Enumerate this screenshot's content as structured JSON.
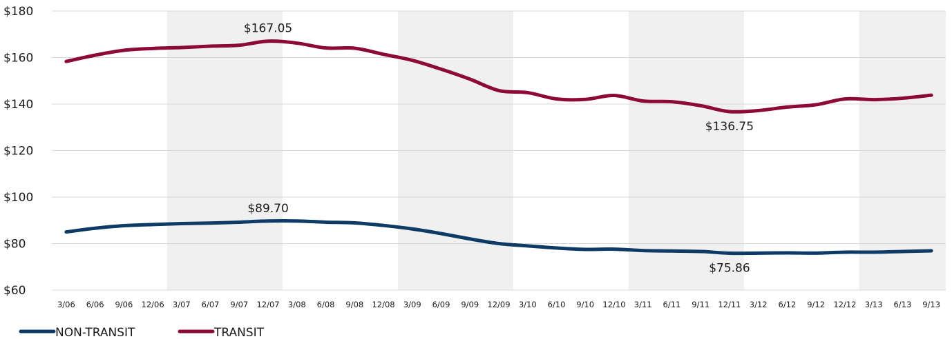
{
  "chart_data": {
    "type": "line",
    "title": "",
    "xlabel": "",
    "ylabel": "",
    "ylim": [
      60,
      180
    ],
    "yticks": [
      60,
      80,
      100,
      120,
      140,
      160,
      180
    ],
    "ytick_labels": [
      "$60",
      "$80",
      "$100",
      "$120",
      "$140",
      "$160",
      "$180"
    ],
    "grid": true,
    "legend": "bottom-left",
    "shaded_bands": [
      [
        "3/07",
        "12/07"
      ],
      [
        "3/09",
        "12/09"
      ],
      [
        "3/11",
        "12/11"
      ],
      [
        "3/13",
        "9/13"
      ]
    ],
    "categories": [
      "3/06",
      "6/06",
      "9/06",
      "12/06",
      "3/07",
      "6/07",
      "9/07",
      "12/07",
      "3/08",
      "6/08",
      "9/08",
      "12/08",
      "3/09",
      "6/09",
      "9/09",
      "12/09",
      "3/10",
      "6/10",
      "9/10",
      "12/10",
      "3/11",
      "6/11",
      "9/11",
      "12/11",
      "3/12",
      "6/12",
      "9/12",
      "12/12",
      "3/13",
      "6/13",
      "9/13"
    ],
    "series": [
      {
        "name": "NON-TRANSIT",
        "color": "#0e3a66",
        "values": [
          85.0,
          86.6,
          87.7,
          88.2,
          88.6,
          88.8,
          89.2,
          89.7,
          89.7,
          89.2,
          88.9,
          87.8,
          86.3,
          84.3,
          82.0,
          80.0,
          79.0,
          78.1,
          77.5,
          77.6,
          77.0,
          76.8,
          76.6,
          75.86,
          75.9,
          76.0,
          75.9,
          76.3,
          76.3,
          76.6,
          76.9
        ]
      },
      {
        "name": "TRANSIT",
        "color": "#8c0a35",
        "values": [
          158.3,
          161.0,
          163.1,
          163.9,
          164.3,
          164.9,
          165.3,
          167.05,
          166.2,
          164.1,
          164.0,
          161.4,
          158.8,
          155.0,
          150.7,
          145.8,
          144.9,
          142.2,
          142.0,
          143.7,
          141.3,
          141.0,
          139.3,
          136.75,
          137.2,
          138.7,
          139.7,
          142.2,
          141.9,
          142.5,
          143.8
        ]
      }
    ],
    "annotations": [
      {
        "series": 1,
        "index": 7,
        "text": "$167.05"
      },
      {
        "series": 1,
        "index": 23,
        "text": "$136.75"
      },
      {
        "series": 0,
        "index": 7,
        "text": "$89.70"
      },
      {
        "series": 0,
        "index": 23,
        "text": "$75.86"
      }
    ]
  }
}
